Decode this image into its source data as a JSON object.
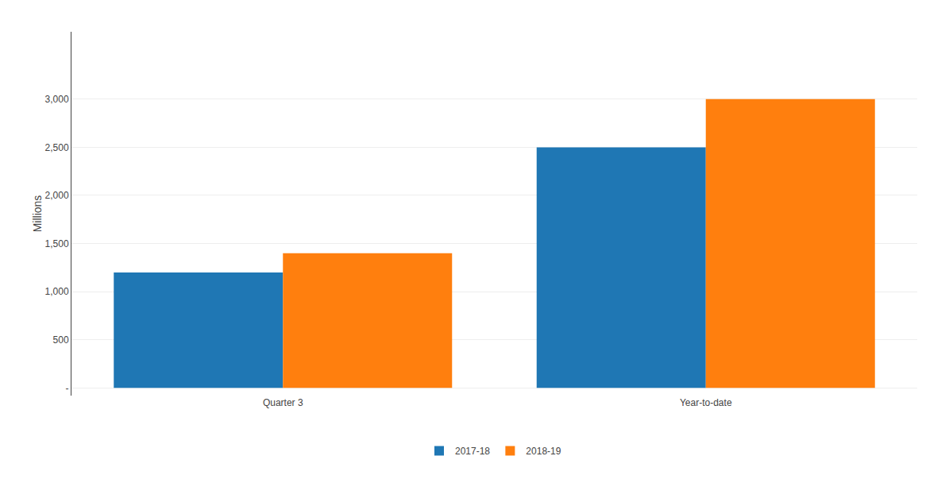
{
  "chart_data": {
    "type": "bar",
    "categories": [
      "Quarter 3",
      "Year-to-date"
    ],
    "series": [
      {
        "name": "2017-18",
        "values": [
          1200,
          2500
        ]
      },
      {
        "name": "2018-19",
        "values": [
          1400,
          3000
        ]
      }
    ],
    "ylabel": "Millions",
    "ylim": [
      -80,
      3700
    ],
    "yticks": [
      {
        "value": 0,
        "label": "-"
      },
      500,
      {
        "value": 1000,
        "label": "1,000"
      },
      {
        "value": 1500,
        "label": "1,500"
      },
      {
        "value": 2000,
        "label": "2,000"
      },
      {
        "value": 2500,
        "label": "2,500"
      },
      {
        "value": 3000,
        "label": "3,000"
      }
    ],
    "grid": true,
    "legend": "bottom"
  }
}
